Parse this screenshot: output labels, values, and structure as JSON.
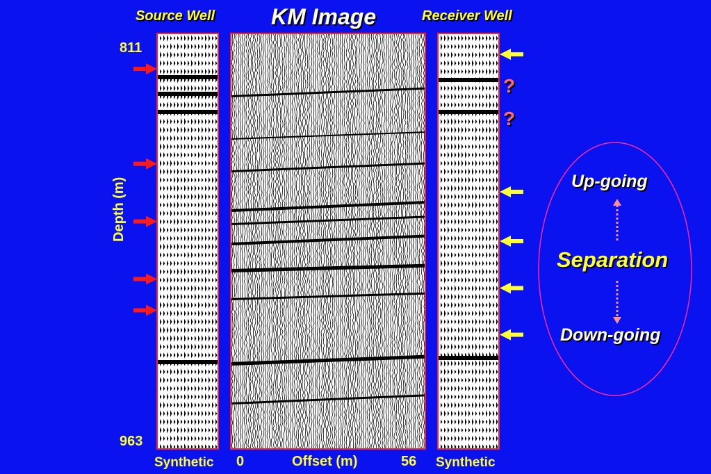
{
  "title": "KM Image",
  "source_well_label": "Source Well",
  "receiver_well_label": "Receiver Well",
  "depth_axis": {
    "label": "Depth (m)",
    "top": "811",
    "bottom": "963"
  },
  "offset_axis": {
    "label": "Offset (m)",
    "min": "0",
    "max": "56"
  },
  "synthetic_left": "Synthetic",
  "synthetic_right": "Synthetic",
  "question_marks": [
    "?",
    "?"
  ],
  "separation": {
    "label": "Separation",
    "up": "Up-going",
    "down": "Down-going"
  },
  "colors": {
    "background": "#0a12f0",
    "label_yellow": "#ffff33",
    "panel_border": "#ff2020",
    "left_arrow": "#ff1a1a",
    "right_arrow": "#ffff33",
    "question": "#ff6a6a",
    "ellipse": "#ff2aa0",
    "dotted_arrow": "#ff9090"
  },
  "source_arrows_depth_m": [
    824.2,
    858.8,
    879.8,
    900.8,
    912.2
  ],
  "receiver_arrows_depth_m": [
    818.9,
    869.0,
    887.0,
    904.1,
    921.1
  ]
}
